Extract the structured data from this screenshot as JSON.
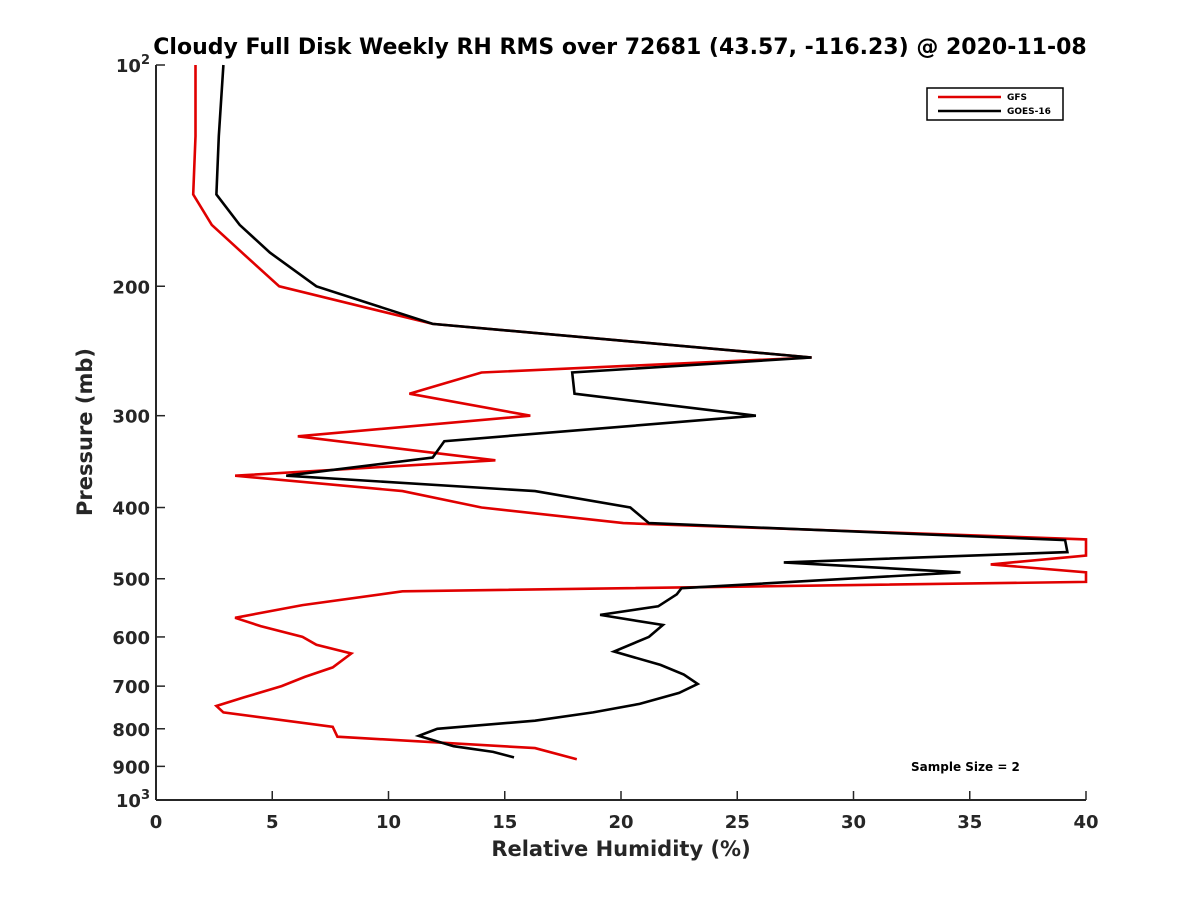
{
  "chart_data": {
    "type": "line",
    "title": "Cloudy Full Disk Weekly RH RMS over 72681 (43.57, -116.23) @ 2020-11-08",
    "xlabel": "Relative Humidity (%)",
    "ylabel": "Pressure (mb)",
    "xlim": [
      0,
      40
    ],
    "ylim": [
      100,
      1000
    ],
    "yscale": "log",
    "y_reversed": true,
    "x_ticks": [
      "0",
      "5",
      "10",
      "15",
      "20",
      "25",
      "30",
      "35",
      "40"
    ],
    "y_ticks": [
      {
        "value": 100,
        "base": "10",
        "exp": "2"
      },
      {
        "value": 200,
        "label": "200"
      },
      {
        "value": 300,
        "label": "300"
      },
      {
        "value": 400,
        "label": "400"
      },
      {
        "value": 500,
        "label": "500"
      },
      {
        "value": 600,
        "label": "600"
      },
      {
        "value": 700,
        "label": "700"
      },
      {
        "value": 800,
        "label": "800"
      },
      {
        "value": 900,
        "label": "900"
      },
      {
        "value": 1000,
        "base": "10",
        "exp": "3"
      }
    ],
    "grid": false,
    "legend_position": "top-right",
    "annotation": "Sample Size = 2",
    "series": [
      {
        "name": "GFS",
        "color": "#e00000",
        "points": [
          [
            1.7,
            100
          ],
          [
            1.7,
            125
          ],
          [
            1.6,
            150
          ],
          [
            2.4,
            165
          ],
          [
            3.7,
            180
          ],
          [
            5.3,
            200
          ],
          [
            11.9,
            225
          ],
          [
            28.2,
            250
          ],
          [
            14.0,
            262
          ],
          [
            10.9,
            280
          ],
          [
            16.1,
            300
          ],
          [
            6.1,
            320
          ],
          [
            14.6,
            345
          ],
          [
            3.4,
            362
          ],
          [
            10.6,
            380
          ],
          [
            14.0,
            400
          ],
          [
            20.1,
            420
          ],
          [
            40.0,
            442
          ],
          [
            40.0,
            465
          ],
          [
            35.9,
            478
          ],
          [
            40.0,
            490
          ],
          [
            40.0,
            505
          ],
          [
            10.6,
            520
          ],
          [
            6.3,
            543
          ],
          [
            3.4,
            565
          ],
          [
            4.5,
            580
          ],
          [
            6.3,
            600
          ],
          [
            6.9,
            615
          ],
          [
            8.4,
            632
          ],
          [
            7.6,
            660
          ],
          [
            6.4,
            680
          ],
          [
            5.4,
            700
          ],
          [
            3.8,
            725
          ],
          [
            2.6,
            745
          ],
          [
            2.9,
            760
          ],
          [
            7.6,
            795
          ],
          [
            7.8,
            820
          ],
          [
            16.3,
            850
          ],
          [
            18.1,
            880
          ]
        ]
      },
      {
        "name": "GOES-16",
        "color": "#000000",
        "points": [
          [
            2.9,
            100
          ],
          [
            2.7,
            125
          ],
          [
            2.6,
            150
          ],
          [
            3.6,
            165
          ],
          [
            4.9,
            180
          ],
          [
            6.9,
            200
          ],
          [
            11.9,
            225
          ],
          [
            28.2,
            250
          ],
          [
            17.9,
            262
          ],
          [
            18.0,
            280
          ],
          [
            25.8,
            300
          ],
          [
            12.4,
            325
          ],
          [
            11.9,
            342
          ],
          [
            5.6,
            362
          ],
          [
            16.3,
            380
          ],
          [
            20.4,
            400
          ],
          [
            21.2,
            420
          ],
          [
            39.1,
            443
          ],
          [
            39.2,
            460
          ],
          [
            27.0,
            475
          ],
          [
            34.6,
            490
          ],
          [
            22.6,
            515
          ],
          [
            22.4,
            525
          ],
          [
            21.6,
            545
          ],
          [
            19.1,
            560
          ],
          [
            21.8,
            578
          ],
          [
            21.2,
            600
          ],
          [
            19.7,
            628
          ],
          [
            21.7,
            655
          ],
          [
            22.7,
            675
          ],
          [
            23.3,
            695
          ],
          [
            22.5,
            715
          ],
          [
            20.8,
            740
          ],
          [
            18.8,
            760
          ],
          [
            16.3,
            780
          ],
          [
            12.1,
            800
          ],
          [
            11.3,
            818
          ],
          [
            12.8,
            845
          ],
          [
            14.5,
            860
          ],
          [
            15.4,
            875
          ]
        ]
      }
    ]
  }
}
